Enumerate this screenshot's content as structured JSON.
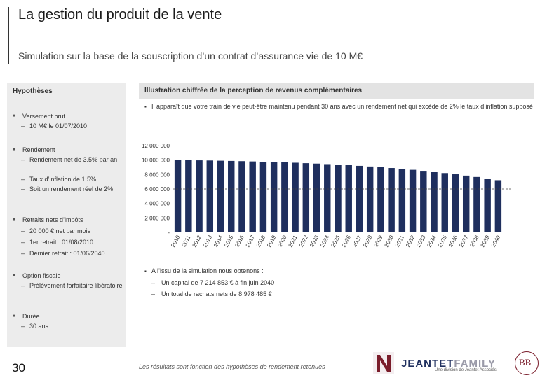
{
  "header": {
    "title": "La gestion du produit de la vente",
    "subtitle": "Simulation sur la base de la souscription d’un contrat d’assurance vie de 10 M€"
  },
  "hypotheses": {
    "heading": "Hypothèses",
    "items": [
      {
        "label": "Versement brut",
        "subs": [
          "10 M€ le 01/07/2010"
        ]
      },
      {
        "label": "Rendement",
        "subs": [
          "Rendement net de 3.5% par an",
          "Taux d’inflation de 1.5%",
          "Soit un rendement réel de 2%"
        ]
      },
      {
        "label": "Retraits nets d’impôts",
        "subs": [
          "20 000 € net par mois",
          "1er retrait : 01/08/2010",
          "Dernier retrait : 01/06/2040"
        ]
      },
      {
        "label": "Option fiscale",
        "subs": [
          "Prélèvement forfaitaire libératoire"
        ]
      },
      {
        "label": "Durée",
        "subs": [
          "30 ans"
        ]
      }
    ]
  },
  "illustration": {
    "heading": "Illustration chiffrée de la perception de revenus complémentaires",
    "note": "Il apparaît que votre train de vie peut-être maintenu pendant 30 ans avec un rendement net qui excède de 2% le taux d’inflation supposé",
    "result_intro": "A l’issu de la simulation nous obtenons :",
    "results": [
      "Un capital de 7 214 853 € à fin juin 2040",
      "Un total de rachats nets de 8 978 485 €"
    ]
  },
  "chart_data": {
    "type": "bar",
    "categories": [
      "2010",
      "2011",
      "2012",
      "2013",
      "2014",
      "2015",
      "2016",
      "2017",
      "2018",
      "2019",
      "2020",
      "2021",
      "2022",
      "2023",
      "2024",
      "2025",
      "2026",
      "2027",
      "2028",
      "2029",
      "2030",
      "2031",
      "2032",
      "2033",
      "2034",
      "2035",
      "2036",
      "2037",
      "2038",
      "2039",
      "2040"
    ],
    "values": [
      10000000,
      9980000,
      9960000,
      9940000,
      9910000,
      9880000,
      9850000,
      9810000,
      9770000,
      9730000,
      9680000,
      9630000,
      9570000,
      9510000,
      9440000,
      9370000,
      9290000,
      9200000,
      9110000,
      9010000,
      8900000,
      8780000,
      8650000,
      8510000,
      8360000,
      8200000,
      8030000,
      7850000,
      7660000,
      7450000,
      7214853
    ],
    "yticks": [
      "12 000 000",
      "10 000 000",
      "8 000 000",
      "6 000 000",
      "4 000 000",
      "2 000 000",
      "-"
    ],
    "ylim": [
      0,
      12000000
    ],
    "bar_color": "#1f2f5e",
    "reference_line": 6000000
  },
  "footer": {
    "page_number": "30",
    "disclaimer": "Les résultats sont fonction des hypothèses de rendement retenues",
    "logo_text_a": "JEANTET",
    "logo_text_b": "FAMILY",
    "logo_sub": "Une division de Jeantet Associés",
    "logo_bb": "BB"
  }
}
